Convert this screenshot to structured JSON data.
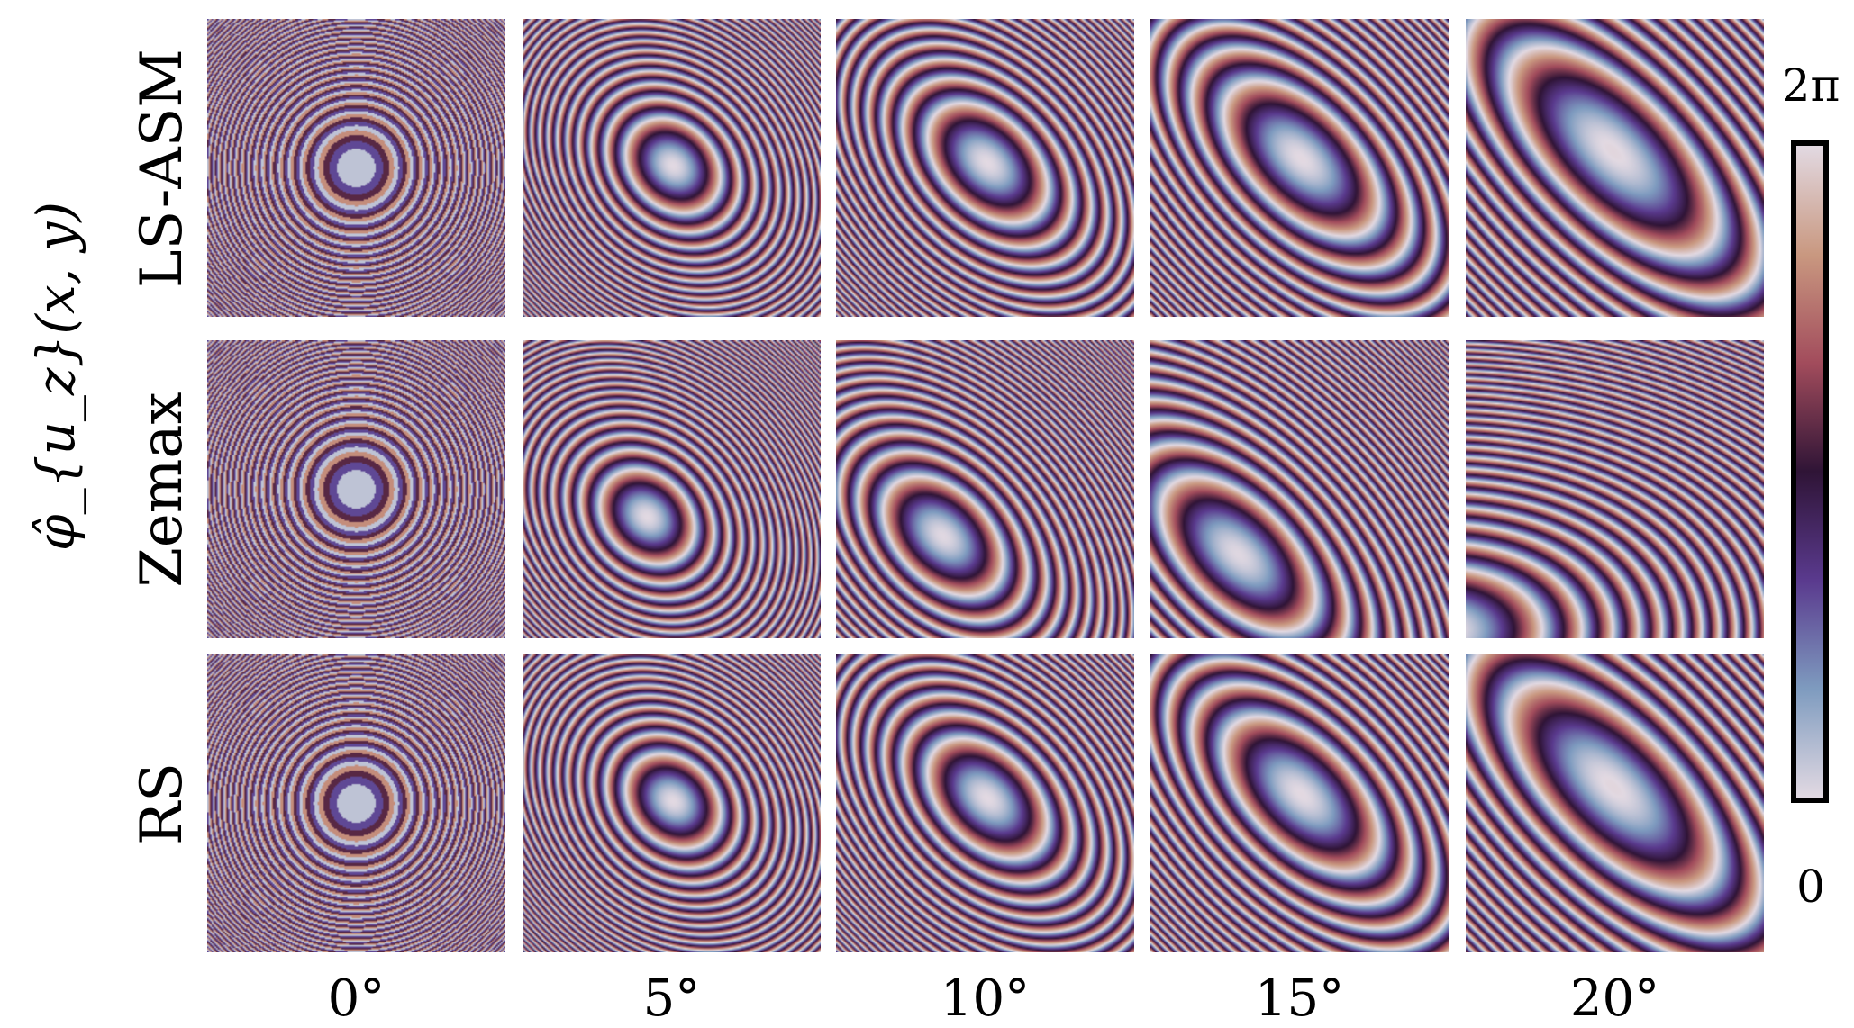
{
  "figure": {
    "y_axis_label": "φ̂_{u_z}(x, y)",
    "rows": [
      {
        "label": "LS-ASM",
        "method": "ls-asm"
      },
      {
        "label": "Zemax",
        "method": "zemax"
      },
      {
        "label": "RS",
        "method": "rs"
      }
    ],
    "columns": [
      {
        "label": "0°",
        "angle_deg": 0
      },
      {
        "label": "5°",
        "angle_deg": 5
      },
      {
        "label": "10°",
        "angle_deg": 10
      },
      {
        "label": "15°",
        "angle_deg": 15
      },
      {
        "label": "20°",
        "angle_deg": 20
      }
    ],
    "colorbar": {
      "max_label": "2π",
      "min_label": "0",
      "colormap": "twilight",
      "colors": [
        "#e2d9e2",
        "#7e9bbf",
        "#5a3a8e",
        "#2f1436",
        "#a24c5c",
        "#c99880",
        "#e2d9e2"
      ]
    }
  }
}
